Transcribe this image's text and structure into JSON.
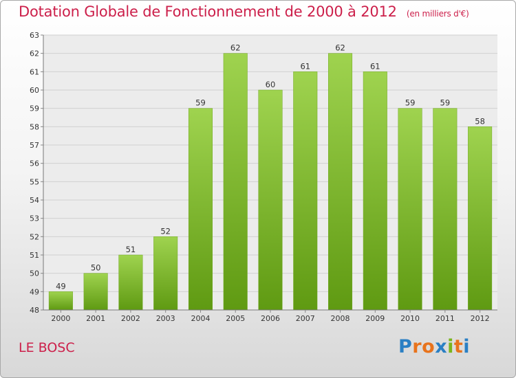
{
  "chart_data": {
    "type": "bar",
    "title": "Dotation Globale de Fonctionnement de 2000 à 2012",
    "unit_note": "(en milliers d'€)",
    "categories": [
      "2000",
      "2001",
      "2002",
      "2003",
      "2004",
      "2005",
      "2006",
      "2007",
      "2008",
      "2009",
      "2010",
      "2011",
      "2012"
    ],
    "values": [
      49,
      50,
      51,
      52,
      59,
      62,
      60,
      61,
      62,
      61,
      59,
      59,
      58
    ],
    "ylim": [
      48,
      63
    ],
    "yticks": [
      48,
      49,
      50,
      51,
      52,
      53,
      54,
      55,
      56,
      57,
      58,
      59,
      60,
      61,
      62,
      63
    ],
    "grid": true,
    "bar_color_top": "#9fd34f",
    "bar_color_bottom": "#5f9a12",
    "xlabel": "",
    "ylabel": ""
  },
  "commune": "LE BOSC",
  "logo": {
    "text": "Proxiti",
    "letter_colors": [
      "#2a7fc4",
      "#e8731c",
      "#e8731c",
      "#2a7fc4",
      "#7ab51d",
      "#e8731c",
      "#2a7fc4"
    ]
  },
  "colors": {
    "accent": "#cc1f4a"
  }
}
